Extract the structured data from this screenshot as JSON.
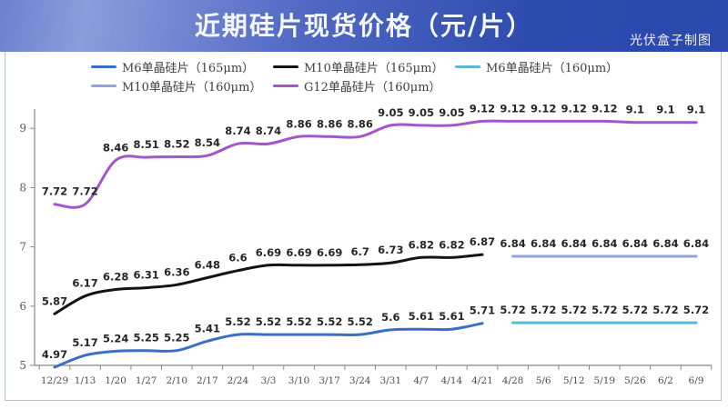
{
  "header": {
    "title": "近期硅片现货价格（元/片）",
    "credit": "光伏盒子制图"
  },
  "chart_data": {
    "type": "line",
    "title": "近期硅片现货价格（元/片）",
    "unit": "元/片",
    "categories": [
      "12/29",
      "1/13",
      "1/20",
      "1/27",
      "2/10",
      "2/17",
      "2/24",
      "3/3",
      "3/10",
      "3/17",
      "3/24",
      "3/31",
      "4/7",
      "4/14",
      "4/21",
      "4/28",
      "5/6",
      "5/12",
      "5/19",
      "5/26",
      "6/2",
      "6/9"
    ],
    "ylim": [
      5,
      9
    ],
    "yticks": [
      5,
      6,
      7,
      8,
      9
    ],
    "grid": false,
    "legend_position": "top",
    "data_labels": true,
    "series": [
      {
        "name": "M6单晶硅片（165μm）",
        "color": "#3a6fc7",
        "start_index": 0,
        "values": [
          4.97,
          5.17,
          5.24,
          5.25,
          5.25,
          5.41,
          5.52,
          5.52,
          5.52,
          5.52,
          5.52,
          5.6,
          5.61,
          5.61,
          5.71
        ]
      },
      {
        "name": "M10单晶硅片（165μm）",
        "color": "#141414",
        "start_index": 0,
        "values": [
          5.87,
          6.17,
          6.28,
          6.31,
          6.36,
          6.48,
          6.6,
          6.69,
          6.69,
          6.69,
          6.7,
          6.73,
          6.82,
          6.82,
          6.87
        ]
      },
      {
        "name": "M6单晶硅片（160μm）",
        "color": "#5eb6d8",
        "start_index": 15,
        "values": [
          5.72,
          5.72,
          5.72,
          5.72,
          5.72,
          5.72,
          5.72
        ]
      },
      {
        "name": "M10单晶硅片（160μm）",
        "color": "#92a3de",
        "start_index": 15,
        "values": [
          6.84,
          6.84,
          6.84,
          6.84,
          6.84,
          6.84,
          6.84
        ]
      },
      {
        "name": "G12单晶硅片（160μm）",
        "color": "#a455ce",
        "start_index": 0,
        "values": [
          7.72,
          7.72,
          8.46,
          8.51,
          8.52,
          8.54,
          8.74,
          8.74,
          8.86,
          8.86,
          8.86,
          9.05,
          9.05,
          9.05,
          9.12,
          9.12,
          9.12,
          9.12,
          9.12,
          9.1,
          9.1,
          9.1
        ]
      }
    ],
    "legend_rows": [
      [
        0,
        1,
        2
      ],
      [
        3,
        4
      ]
    ]
  }
}
